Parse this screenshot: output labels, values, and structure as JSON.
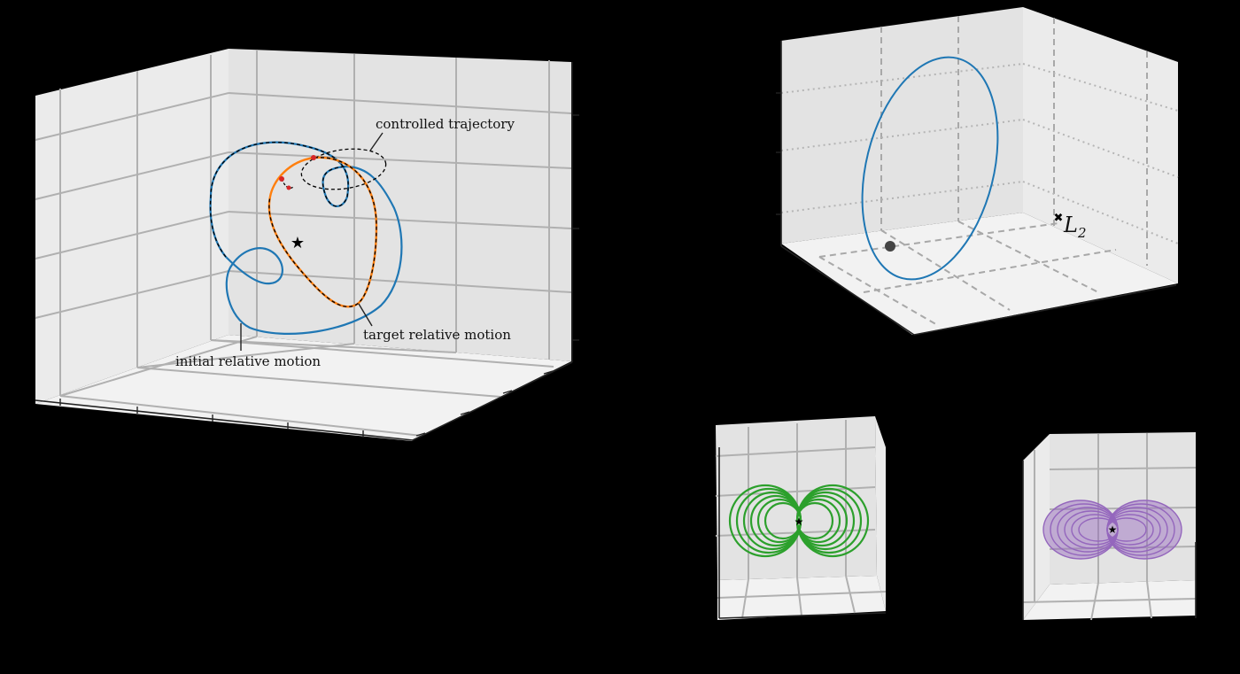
{
  "figure": {
    "panel_main": {
      "labels": {
        "controlled": "controlled trajectory",
        "target": "target relative motion",
        "initial": "initial relative motion"
      },
      "colors": {
        "initial": "#1f77b4",
        "target": "#ff7f0e",
        "controlled": "#000000",
        "marker": "#d62728"
      }
    },
    "panel_orbit": {
      "label_letter": "L",
      "label_sub": "2",
      "orbit_color": "#1f77b4"
    },
    "panel_green": {
      "color": "#2ca02c"
    },
    "panel_purple": {
      "color": "#9467bd"
    }
  }
}
